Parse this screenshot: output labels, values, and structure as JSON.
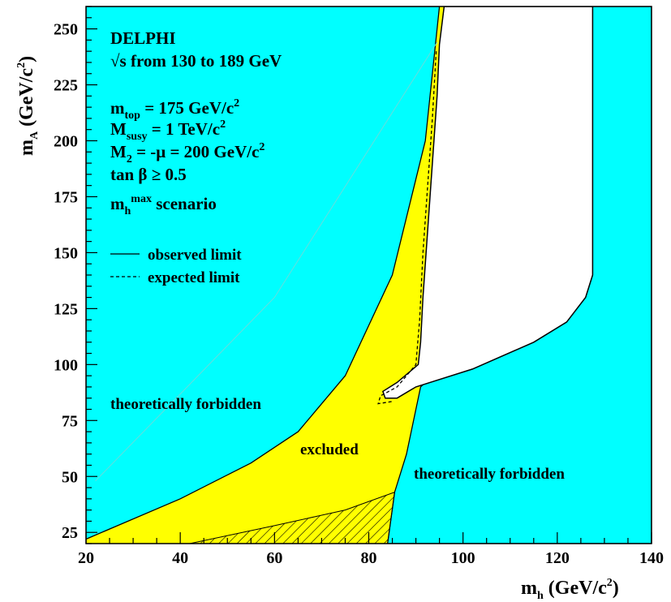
{
  "chart_data": {
    "type": "area",
    "x_axis": {
      "label_main": "m",
      "label_sub": "h",
      "label_unit_pre": " (GeV/c",
      "label_unit_sup": "2",
      "label_unit_post": ")",
      "range": [
        20,
        140
      ],
      "ticks": [
        "20",
        "40",
        "60",
        "80",
        "100",
        "120",
        "140"
      ]
    },
    "y_axis": {
      "label_main": "m",
      "label_sub": "A",
      "label_unit_pre": " (GeV/c",
      "label_unit_sup": "2",
      "label_unit_post": ")",
      "range": [
        20,
        260
      ],
      "ticks": [
        "25",
        "50",
        "75",
        "100",
        "125",
        "150",
        "175",
        "200",
        "225",
        "250"
      ]
    },
    "colors": {
      "forbidden": "#00ffff",
      "excluded": "#ffff00",
      "allowed": "#ffffff"
    },
    "annotations": {
      "experiment": "DELPHI",
      "energy_prefix": "√",
      "energy": "s from 130 to 189 GeV",
      "mtop_main": "m",
      "mtop_sub": "top",
      "mtop_value": " = 175 GeV/c",
      "mtop_sup": "2",
      "msusy_main": "M",
      "msusy_sub": "susy",
      "msusy_value": " = 1 TeV/c",
      "msusy_sup": "2",
      "m2_main": "M",
      "m2_sub": "2",
      "m2_value": " = -μ = 200 GeV/c",
      "m2_sup": "2",
      "tanb": "tan β ≥ 0.5",
      "scenario_main": "m",
      "scenario_sub": "h",
      "scenario_sup": "max",
      "scenario_rest": " scenario"
    },
    "legend": {
      "placement": "upper-left",
      "entries": [
        {
          "label": "observed limit",
          "style": "solid"
        },
        {
          "label": "expected limit",
          "style": "dashed"
        }
      ]
    },
    "region_labels": {
      "forbidden_left": "theoretically forbidden",
      "forbidden_right": "theoretically forbidden",
      "excluded": "excluded"
    },
    "boundaries": {
      "forbidden_left": [
        [
          20,
          22
        ],
        [
          40,
          40
        ],
        [
          55,
          56
        ],
        [
          65,
          70
        ],
        [
          75,
          95
        ],
        [
          85,
          140
        ],
        [
          92,
          200
        ],
        [
          95,
          260
        ]
      ],
      "allowed_region": [
        [
          96,
          260
        ],
        [
          95,
          243
        ],
        [
          94.5,
          220
        ],
        [
          93.5,
          190
        ],
        [
          92.5,
          160
        ],
        [
          91.5,
          130
        ],
        [
          91,
          110
        ],
        [
          90.5,
          100
        ],
        [
          86,
          92
        ],
        [
          83,
          88
        ],
        [
          83.5,
          85
        ],
        [
          86,
          85
        ],
        [
          90,
          90
        ],
        [
          102,
          98
        ],
        [
          115,
          110
        ],
        [
          122,
          119
        ],
        [
          126,
          130
        ],
        [
          127.5,
          140
        ],
        [
          127.5,
          260
        ]
      ],
      "forbidden_right": [
        [
          84,
          20
        ],
        [
          85.5,
          43
        ],
        [
          88,
          60
        ],
        [
          91,
          90
        ],
        [
          92,
          92
        ],
        [
          102,
          98
        ],
        [
          115,
          110
        ],
        [
          122,
          119
        ],
        [
          126,
          130
        ],
        [
          127.5,
          140
        ],
        [
          127.5,
          260
        ],
        [
          140,
          260
        ],
        [
          140,
          20
        ]
      ],
      "hatched": [
        [
          42,
          20
        ],
        [
          60,
          28
        ],
        [
          75,
          35
        ],
        [
          85.5,
          43
        ],
        [
          84,
          20
        ]
      ],
      "expected_limit": [
        [
          94.3,
          240
        ],
        [
          93.5,
          210
        ],
        [
          92.5,
          180
        ],
        [
          91.5,
          150
        ],
        [
          90.8,
          120
        ],
        [
          90,
          100
        ],
        [
          86,
          90
        ],
        [
          82.5,
          86
        ],
        [
          82,
          82.5
        ],
        [
          85,
          83.5
        ]
      ],
      "diagonal": [
        [
          22,
          48
        ],
        [
          60,
          130
        ],
        [
          94.5,
          244
        ]
      ]
    }
  }
}
